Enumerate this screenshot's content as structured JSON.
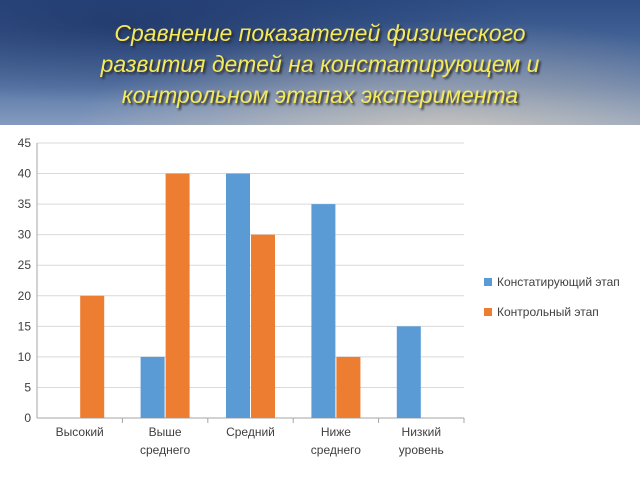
{
  "title_lines": [
    "Сравнение показателей физического",
    "развития детей на констатирующем и",
    "контрольном этапах  эксперимента"
  ],
  "colors": {
    "title": "#f5e95c",
    "series1": "#5b9bd5",
    "series2": "#ed7d31",
    "grid": "#d9d9d9",
    "axis": "#a6a6a6"
  },
  "chart_data": {
    "type": "bar",
    "title": "Сравнение показателей физического развития детей на констатирующем и контрольном этапах  эксперимента",
    "categories": [
      [
        "Высокий"
      ],
      [
        "Выше",
        "среднего"
      ],
      [
        "Средний"
      ],
      [
        "Ниже",
        "среднего"
      ],
      [
        "Низкий",
        "уровень"
      ]
    ],
    "series": [
      {
        "name": "Констатирующий этап",
        "values": [
          0,
          10,
          40,
          35,
          15
        ]
      },
      {
        "name": "Контрольный этап",
        "values": [
          20,
          40,
          30,
          10,
          0
        ]
      }
    ],
    "yticks": [
      0,
      5,
      10,
      15,
      20,
      25,
      30,
      35,
      40,
      45
    ],
    "ylim": [
      0,
      45
    ],
    "grid": true,
    "legend_position": "right"
  }
}
